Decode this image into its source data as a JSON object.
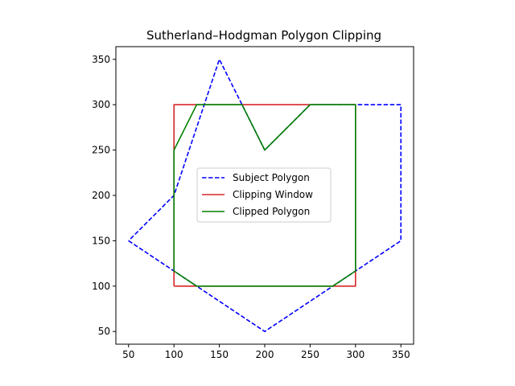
{
  "chart_data": {
    "type": "line",
    "title": "Sutherland–Hodgman Polygon Clipping",
    "xlabel": "",
    "ylabel": "",
    "xlim": [
      36,
      364
    ],
    "ylim": [
      36,
      364
    ],
    "xticks": [
      50,
      100,
      150,
      200,
      250,
      300,
      350
    ],
    "yticks": [
      50,
      100,
      150,
      200,
      250,
      300,
      350
    ],
    "grid": false,
    "legend_position": "center",
    "series": [
      {
        "name": "Subject Polygon",
        "style": "dashed",
        "color": "#0000ff",
        "points": [
          [
            50,
            150
          ],
          [
            200,
            50
          ],
          [
            350,
            150
          ],
          [
            350,
            300
          ],
          [
            250,
            300
          ],
          [
            200,
            250
          ],
          [
            150,
            350
          ],
          [
            100,
            200
          ],
          [
            50,
            150
          ]
        ]
      },
      {
        "name": "Clipping Window",
        "style": "solid",
        "color": "#d62728",
        "points": [
          [
            100,
            100
          ],
          [
            300,
            100
          ],
          [
            300,
            300
          ],
          [
            100,
            300
          ],
          [
            100,
            100
          ]
        ]
      },
      {
        "name": "Clipped Polygon",
        "style": "solid",
        "color": "#008000",
        "points": [
          [
            100,
            250
          ],
          [
            125,
            300
          ],
          [
            175,
            300
          ],
          [
            200,
            250
          ],
          [
            250,
            300
          ],
          [
            300,
            300
          ],
          [
            300,
            116.67
          ],
          [
            275,
            100
          ],
          [
            125,
            100
          ],
          [
            100,
            116.67
          ],
          [
            100,
            250
          ]
        ]
      }
    ]
  }
}
